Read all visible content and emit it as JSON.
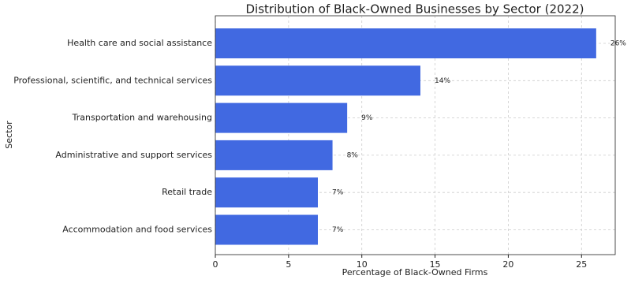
{
  "chart_data": {
    "type": "barh",
    "title": "Distribution of Black-Owned Businesses by Sector (2022)",
    "x_label": "Percentage of Black-Owned Firms",
    "y_label": "Sector",
    "categories": [
      "Health care and social assistance",
      "Professional, scientific, and technical services",
      "Transportation and warehousing",
      "Administrative and support services",
      "Retail trade",
      "Accommodation and food services"
    ],
    "values": [
      26,
      14,
      9,
      8,
      7,
      7
    ],
    "value_labels": [
      "26%",
      "14%",
      "9%",
      "8%",
      "7%",
      "7%"
    ],
    "color": "#4169e1",
    "xlim": [
      0,
      27.3
    ],
    "xticks": [
      0,
      5,
      10,
      15,
      20,
      25
    ],
    "grid": true
  }
}
